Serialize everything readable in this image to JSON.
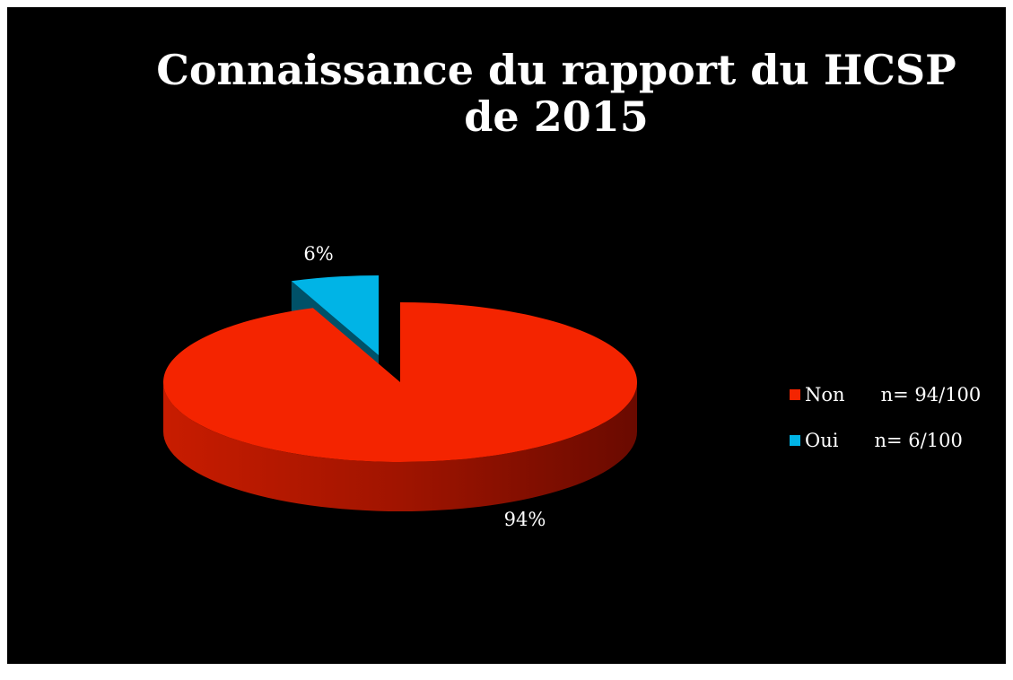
{
  "chart_data": {
    "type": "pie",
    "title": "Connaissance du rapport du HCSP de 2015",
    "categories": [
      "Non      n= 94/100",
      "Oui      n= 6/100"
    ],
    "values": [
      94,
      6
    ],
    "value_labels": [
      "94%",
      "6%"
    ],
    "colors": [
      "#f42400",
      "#00b4e6"
    ],
    "legend": "right"
  }
}
